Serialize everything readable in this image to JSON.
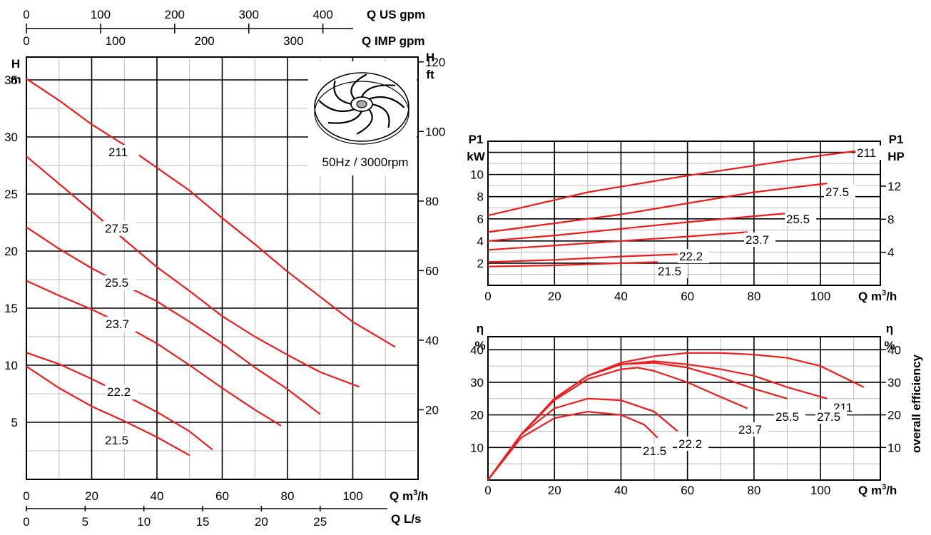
{
  "chart_data": [
    {
      "id": "head",
      "type": "line",
      "title": "",
      "speed_label": "50Hz / 3000rpm",
      "xlabel": "Q m³/h",
      "ylabel_left": {
        "symbol": "H",
        "unit": "m"
      },
      "ylabel_right": {
        "symbol": "H",
        "unit": "ft"
      },
      "xlim": [
        0,
        120
      ],
      "ylim": [
        0,
        37
      ],
      "grid": true,
      "x_ticks": [
        0,
        20,
        40,
        60,
        80,
        100
      ],
      "y_ticks": [
        5,
        10,
        15,
        20,
        25,
        30,
        35
      ],
      "y2_ticks": [
        20,
        40,
        60,
        80,
        100,
        120
      ],
      "top_axes": [
        {
          "label": "Q US gpm",
          "ticks": [
            0,
            100,
            200,
            300,
            400
          ]
        },
        {
          "label": "Q IMP gpm",
          "ticks": [
            0,
            100,
            200,
            300
          ]
        }
      ],
      "bottom_axis2": {
        "label": "Q L/s",
        "ticks": [
          0,
          5,
          10,
          15,
          20,
          25
        ]
      },
      "series": [
        {
          "name": "211",
          "points": [
            [
              0,
              35.1
            ],
            [
              10,
              33.2
            ],
            [
              20,
              31.1
            ],
            [
              30,
              29.3
            ],
            [
              40,
              27.3
            ],
            [
              50,
              25.3
            ],
            [
              60,
              22.9
            ],
            [
              70,
              20.6
            ],
            [
              80,
              18.2
            ],
            [
              90,
              16.0
            ],
            [
              100,
              13.8
            ],
            [
              113,
              11.6
            ]
          ]
        },
        {
          "name": "27.5",
          "points": [
            [
              0,
              28.3
            ],
            [
              10,
              25.9
            ],
            [
              20,
              23.5
            ],
            [
              30,
              21.0
            ],
            [
              40,
              18.6
            ],
            [
              50,
              16.5
            ],
            [
              60,
              14.3
            ],
            [
              70,
              12.5
            ],
            [
              80,
              10.9
            ],
            [
              90,
              9.4
            ],
            [
              102,
              8.1
            ]
          ]
        },
        {
          "name": "25.5",
          "points": [
            [
              0,
              22.1
            ],
            [
              10,
              20.2
            ],
            [
              20,
              18.5
            ],
            [
              30,
              17.0
            ],
            [
              40,
              15.6
            ],
            [
              50,
              13.8
            ],
            [
              60,
              11.9
            ],
            [
              70,
              9.8
            ],
            [
              80,
              7.9
            ],
            [
              90,
              5.7
            ]
          ]
        },
        {
          "name": "23.7",
          "points": [
            [
              0,
              17.4
            ],
            [
              10,
              16.1
            ],
            [
              20,
              14.9
            ],
            [
              30,
              13.5
            ],
            [
              40,
              11.9
            ],
            [
              50,
              10.0
            ],
            [
              60,
              8.0
            ],
            [
              70,
              6.1
            ],
            [
              78,
              4.7
            ]
          ]
        },
        {
          "name": "22.2",
          "points": [
            [
              0,
              11.1
            ],
            [
              10,
              10.1
            ],
            [
              20,
              8.8
            ],
            [
              30,
              7.4
            ],
            [
              40,
              5.9
            ],
            [
              50,
              4.2
            ],
            [
              57,
              2.6
            ]
          ]
        },
        {
          "name": "21.5",
          "points": [
            [
              0,
              9.9
            ],
            [
              10,
              8.0
            ],
            [
              20,
              6.4
            ],
            [
              30,
              5.1
            ],
            [
              40,
              3.7
            ],
            [
              50,
              2.1
            ]
          ]
        }
      ]
    },
    {
      "id": "power",
      "type": "line",
      "title": "",
      "xlabel": "Q m³/h",
      "ylabel_left": {
        "symbol": "P1",
        "unit": "kW"
      },
      "ylabel_right": {
        "symbol": "P1",
        "unit": "HP"
      },
      "xlim": [
        0,
        118
      ],
      "ylim": [
        0,
        13
      ],
      "grid": true,
      "x_ticks": [
        0,
        20,
        40,
        60,
        80,
        100
      ],
      "y_ticks": [
        2,
        4,
        6,
        8,
        10
      ],
      "y2_ticks": [
        4,
        8,
        12
      ],
      "series": [
        {
          "name": "211",
          "points": [
            [
              0,
              6.3
            ],
            [
              10,
              7.0
            ],
            [
              20,
              7.7
            ],
            [
              30,
              8.4
            ],
            [
              40,
              8.9
            ],
            [
              60,
              9.9
            ],
            [
              80,
              10.8
            ],
            [
              100,
              11.7
            ],
            [
              113,
              12.2
            ]
          ]
        },
        {
          "name": "27.5",
          "points": [
            [
              0,
              4.8
            ],
            [
              20,
              5.6
            ],
            [
              40,
              6.4
            ],
            [
              60,
              7.4
            ],
            [
              80,
              8.4
            ],
            [
              102,
              9.2
            ]
          ]
        },
        {
          "name": "25.5",
          "points": [
            [
              0,
              4.0
            ],
            [
              20,
              4.5
            ],
            [
              40,
              5.1
            ],
            [
              60,
              5.7
            ],
            [
              90,
              6.5
            ]
          ]
        },
        {
          "name": "23.7",
          "points": [
            [
              0,
              3.2
            ],
            [
              20,
              3.6
            ],
            [
              40,
              4.0
            ],
            [
              60,
              4.4
            ],
            [
              78,
              4.8
            ]
          ]
        },
        {
          "name": "22.2",
          "points": [
            [
              0,
              2.1
            ],
            [
              20,
              2.3
            ],
            [
              40,
              2.6
            ],
            [
              57,
              2.8
            ]
          ]
        },
        {
          "name": "21.5",
          "points": [
            [
              0,
              1.7
            ],
            [
              20,
              1.8
            ],
            [
              40,
              2.0
            ],
            [
              51,
              2.1
            ]
          ]
        }
      ]
    },
    {
      "id": "efficiency",
      "type": "line",
      "title": "",
      "xlabel": "Q m³/h",
      "ylabel_left": {
        "symbol": "η",
        "unit": "%"
      },
      "ylabel_right": {
        "symbol": "η",
        "unit": "%"
      },
      "right_axis_title": "overall efficiency",
      "xlim": [
        0,
        118
      ],
      "ylim": [
        0,
        44
      ],
      "grid": true,
      "x_ticks": [
        0,
        20,
        40,
        60,
        80,
        100
      ],
      "y_ticks": [
        10,
        20,
        30,
        40
      ],
      "y2_ticks": [
        10,
        20,
        30,
        40
      ],
      "series": [
        {
          "name": "211",
          "points": [
            [
              0,
              0
            ],
            [
              10,
              14
            ],
            [
              20,
              25
            ],
            [
              30,
              32
            ],
            [
              40,
              36
            ],
            [
              50,
              38
            ],
            [
              60,
              39
            ],
            [
              70,
              39
            ],
            [
              80,
              38.5
            ],
            [
              90,
              37.5
            ],
            [
              100,
              35
            ],
            [
              113,
              28.5
            ]
          ]
        },
        {
          "name": "27.5",
          "points": [
            [
              0,
              0
            ],
            [
              10,
              14
            ],
            [
              20,
              25
            ],
            [
              30,
              32
            ],
            [
              40,
              35.5
            ],
            [
              50,
              36.5
            ],
            [
              60,
              35.5
            ],
            [
              70,
              34
            ],
            [
              80,
              32
            ],
            [
              90,
              28.5
            ],
            [
              102,
              25
            ]
          ]
        },
        {
          "name": "25.5",
          "points": [
            [
              0,
              0
            ],
            [
              10,
              14
            ],
            [
              20,
              25
            ],
            [
              30,
              32
            ],
            [
              40,
              35.5
            ],
            [
              50,
              36
            ],
            [
              60,
              34.5
            ],
            [
              70,
              31.5
            ],
            [
              80,
              28
            ],
            [
              90,
              25
            ]
          ]
        },
        {
          "name": "23.7",
          "points": [
            [
              0,
              0
            ],
            [
              10,
              14
            ],
            [
              20,
              24.5
            ],
            [
              30,
              31
            ],
            [
              40,
              34
            ],
            [
              45,
              34.5
            ],
            [
              50,
              33.5
            ],
            [
              60,
              30
            ],
            [
              70,
              25.5
            ],
            [
              78,
              22
            ]
          ]
        },
        {
          "name": "22.2",
          "points": [
            [
              0,
              0
            ],
            [
              10,
              14
            ],
            [
              20,
              22
            ],
            [
              30,
              25
            ],
            [
              40,
              24.5
            ],
            [
              50,
              21
            ],
            [
              57,
              15
            ]
          ]
        },
        {
          "name": "21.5",
          "points": [
            [
              0,
              0
            ],
            [
              10,
              13
            ],
            [
              20,
              19
            ],
            [
              30,
              21
            ],
            [
              40,
              20
            ],
            [
              47,
              17
            ],
            [
              51,
              13
            ]
          ]
        }
      ]
    }
  ]
}
